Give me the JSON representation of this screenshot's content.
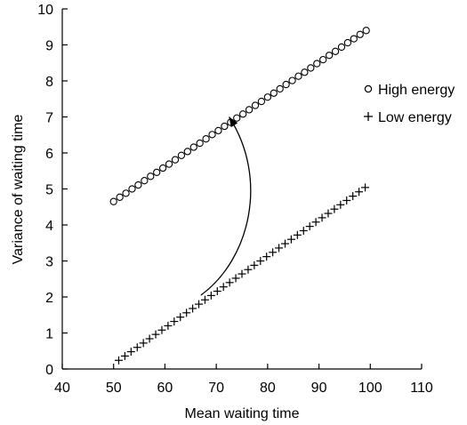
{
  "chart_data": {
    "type": "scatter",
    "title": "",
    "xlabel": "Mean waiting time",
    "ylabel": "Variance of waiting time",
    "xlim": [
      40,
      110
    ],
    "ylim": [
      0,
      10
    ],
    "xticks": [
      "40",
      "50",
      "60",
      "70",
      "80",
      "90",
      "100",
      "110"
    ],
    "yticks": [
      "0",
      "1",
      "2",
      "3",
      "4",
      "5",
      "6",
      "7",
      "8",
      "9",
      "10"
    ],
    "grid": false,
    "legend_position": "top-right",
    "series": [
      {
        "name": "High energy",
        "marker": "circle",
        "x": [
          50.0,
          51.2,
          52.4,
          53.6,
          54.8,
          56.0,
          57.2,
          58.4,
          59.6,
          60.8,
          62.0,
          63.2,
          64.4,
          65.6,
          66.8,
          68.0,
          69.2,
          70.4,
          71.6,
          72.8,
          74.0,
          75.2,
          76.4,
          77.6,
          78.8,
          80.0,
          81.2,
          82.4,
          83.6,
          84.8,
          86.0,
          87.2,
          88.4,
          89.6,
          90.8,
          92.0,
          93.2,
          94.4,
          95.6,
          96.8,
          98.0,
          99.2
        ],
        "y": [
          4.65,
          4.77,
          4.88,
          5.0,
          5.11,
          5.23,
          5.35,
          5.46,
          5.58,
          5.69,
          5.81,
          5.93,
          6.04,
          6.16,
          6.27,
          6.39,
          6.51,
          6.62,
          6.74,
          6.85,
          6.97,
          7.08,
          7.2,
          7.32,
          7.43,
          7.55,
          7.66,
          7.78,
          7.9,
          8.01,
          8.13,
          8.24,
          8.36,
          8.48,
          8.59,
          8.71,
          8.82,
          8.94,
          9.06,
          9.17,
          9.29,
          9.4
        ]
      },
      {
        "name": "Low energy",
        "marker": "plus",
        "x": [
          51.0,
          52.2,
          53.4,
          54.6,
          55.8,
          57.0,
          58.2,
          59.4,
          60.6,
          61.8,
          63.0,
          64.2,
          65.4,
          66.6,
          67.8,
          69.0,
          70.2,
          71.4,
          72.6,
          73.8,
          75.0,
          76.2,
          77.4,
          78.6,
          79.8,
          81.0,
          82.2,
          83.4,
          84.6,
          85.8,
          87.0,
          88.2,
          89.4,
          90.6,
          91.8,
          93.0,
          94.2,
          95.4,
          96.6,
          97.8,
          99.0
        ],
        "y": [
          0.24,
          0.36,
          0.48,
          0.6,
          0.72,
          0.84,
          0.96,
          1.08,
          1.2,
          1.32,
          1.44,
          1.56,
          1.68,
          1.8,
          1.92,
          2.04,
          2.16,
          2.28,
          2.4,
          2.52,
          2.64,
          2.76,
          2.88,
          3.0,
          3.12,
          3.24,
          3.36,
          3.48,
          3.6,
          3.72,
          3.84,
          3.96,
          4.08,
          4.2,
          4.32,
          4.44,
          4.56,
          4.68,
          4.8,
          4.92,
          5.04
        ]
      }
    ],
    "annotations": [
      {
        "type": "curved-arrow",
        "from": [
          67.0,
          2.05
        ],
        "to": [
          72.5,
          7.0
        ]
      }
    ]
  }
}
